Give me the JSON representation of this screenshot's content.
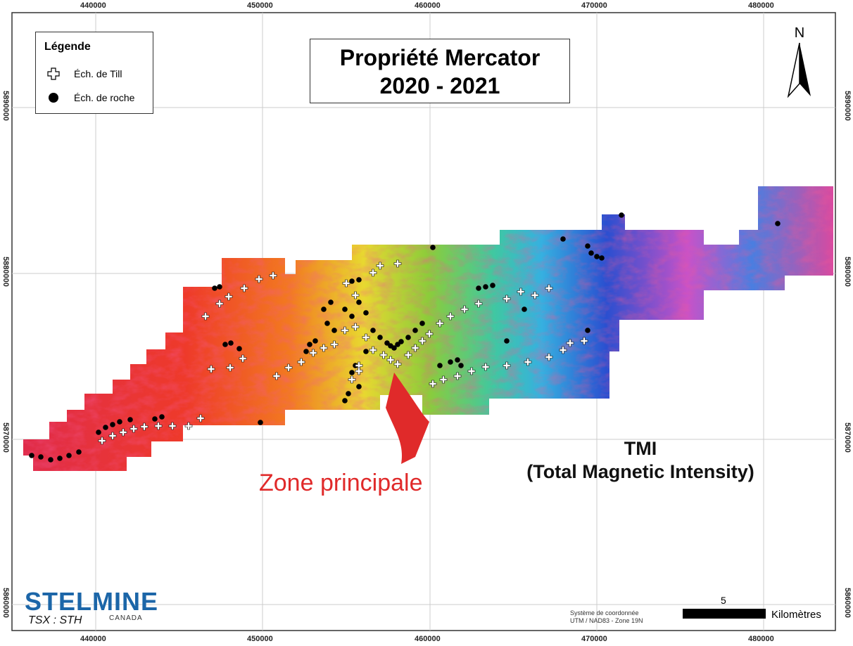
{
  "title": {
    "line1": "Propriété Mercator",
    "line2": "2020 - 2021"
  },
  "legend": {
    "heading": "Légende",
    "items": [
      {
        "label": "Éch. de Till",
        "symbol": "white-cross"
      },
      {
        "label": "Éch. de roche",
        "symbol": "black-dot"
      }
    ]
  },
  "north_label": "N",
  "x_ticks": [
    "440000",
    "450000",
    "460000",
    "470000",
    "480000"
  ],
  "y_ticks": [
    "5890000",
    "5880000",
    "5870000",
    "5860000"
  ],
  "annotation": "Zone principale",
  "layer": {
    "line1": "TMI",
    "line2": "(Total Magnetic Intensity)"
  },
  "coordinate_system": {
    "line1": "Système de coordonnée",
    "line2": "UTM / NAD83 - Zone 19N"
  },
  "scale": {
    "value": "5",
    "unit": "Kilomètres"
  },
  "logo": {
    "name": "STELMINE",
    "sub": "CANADA",
    "ticker": "TSX : STH"
  },
  "colors": {
    "annotation": "#e02a2a",
    "logo": "#1c66a8",
    "tmi_low": "#2a4fd0",
    "tmi_high": "#e8283c"
  }
}
